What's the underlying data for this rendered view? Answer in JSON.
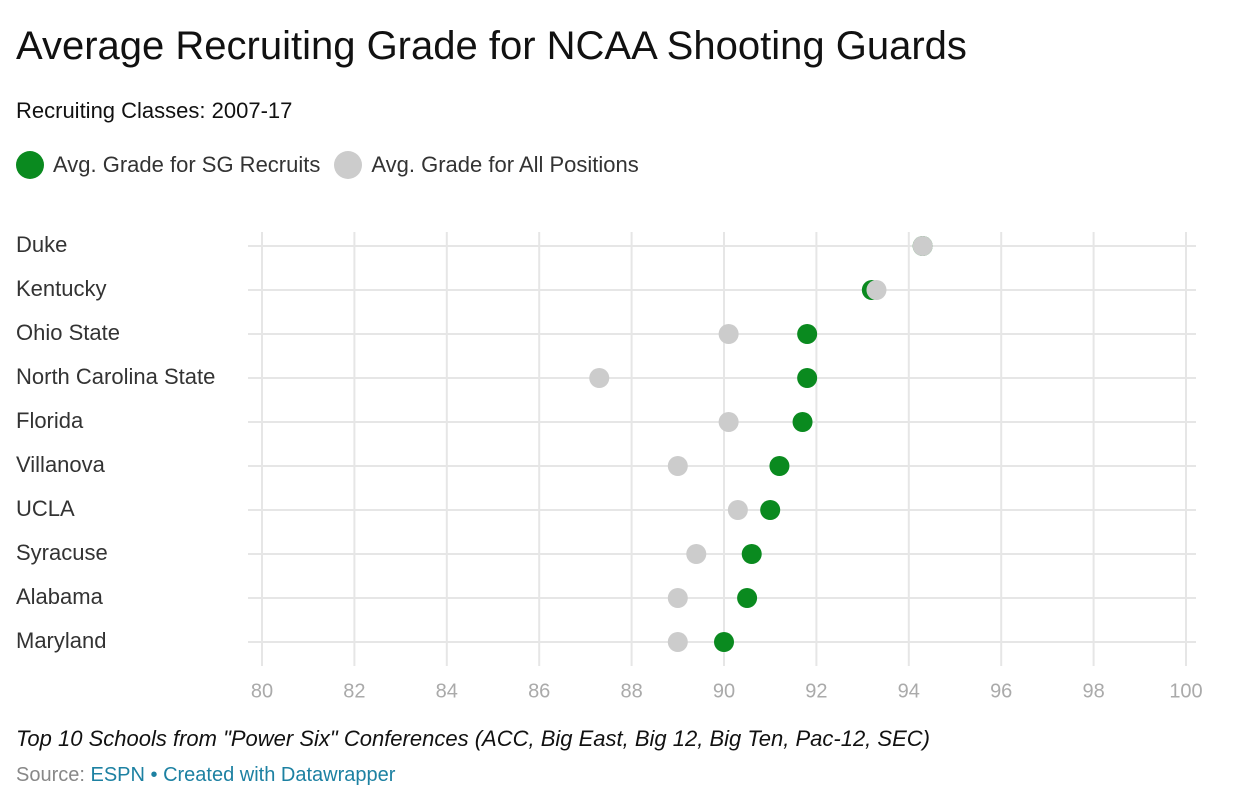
{
  "header": {
    "title": "Average Recruiting Grade for NCAA Shooting Guards",
    "subtitle": "Recruiting Classes: 2007-17"
  },
  "colors": {
    "sg": "#0a8a1f",
    "all": "#cccccc",
    "grid": "#e6e6e6",
    "link": "#1d81a2"
  },
  "chart_data": {
    "type": "scatter",
    "title": "Average Recruiting Grade for NCAA Shooting Guards",
    "subtitle": "Recruiting Classes: 2007-17",
    "categories": [
      "Duke",
      "Kentucky",
      "Ohio State",
      "North Carolina State",
      "Florida",
      "Villanova",
      "UCLA",
      "Syracuse",
      "Alabama",
      "Maryland"
    ],
    "series": [
      {
        "name": "Avg. Grade for SG Recruits",
        "color": "#0a8a1f",
        "values": [
          94.3,
          93.2,
          91.8,
          91.8,
          91.7,
          91.2,
          91.0,
          90.6,
          90.5,
          90.0
        ]
      },
      {
        "name": "Avg. Grade for All Positions",
        "color": "#cccccc",
        "values": [
          94.3,
          93.3,
          90.1,
          87.3,
          90.1,
          89.0,
          90.3,
          89.4,
          89.0,
          89.0
        ]
      }
    ],
    "xlim": [
      80,
      100
    ],
    "xticks": [
      "80",
      "82",
      "84",
      "86",
      "88",
      "90",
      "92",
      "94",
      "96",
      "98",
      "100"
    ],
    "xlabel": "",
    "ylabel": "",
    "grid": true,
    "legend": "top-left"
  },
  "footer": {
    "note": "Top 10 Schools from \"Power Six\" Conferences (ACC, Big East, Big 12, Big Ten, Pac-12, SEC)",
    "source_label": "Source: ",
    "source_name": "ESPN",
    "separator": " • ",
    "created_with": "Created with Datawrapper"
  }
}
